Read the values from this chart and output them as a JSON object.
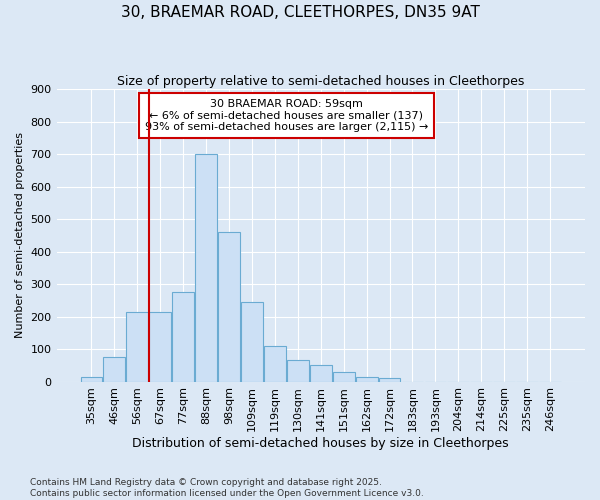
{
  "title1": "30, BRAEMAR ROAD, CLEETHORPES, DN35 9AT",
  "title2": "Size of property relative to semi-detached houses in Cleethorpes",
  "xlabel": "Distribution of semi-detached houses by size in Cleethorpes",
  "ylabel": "Number of semi-detached properties",
  "categories": [
    "35sqm",
    "46sqm",
    "56sqm",
    "67sqm",
    "77sqm",
    "88sqm",
    "98sqm",
    "109sqm",
    "119sqm",
    "130sqm",
    "141sqm",
    "151sqm",
    "162sqm",
    "172sqm",
    "183sqm",
    "193sqm",
    "204sqm",
    "214sqm",
    "225sqm",
    "235sqm",
    "246sqm"
  ],
  "bar_values": [
    15,
    75,
    215,
    215,
    275,
    700,
    460,
    245,
    110,
    65,
    50,
    30,
    15,
    10,
    0,
    0,
    0,
    0,
    0,
    0,
    0
  ],
  "vline_x": 2.5,
  "annotation_text": "30 BRAEMAR ROAD: 59sqm\n← 6% of semi-detached houses are smaller (137)\n93% of semi-detached houses are larger (2,115) →",
  "footer": "Contains HM Land Registry data © Crown copyright and database right 2025.\nContains public sector information licensed under the Open Government Licence v3.0.",
  "bar_color": "#cce0f5",
  "bar_edge_color": "#6aabd2",
  "vline_color": "#cc0000",
  "annotation_box_edge": "#cc0000",
  "background_color": "#dce8f5",
  "grid_color": "#ffffff",
  "ylim": [
    0,
    900
  ],
  "yticks": [
    0,
    100,
    200,
    300,
    400,
    500,
    600,
    700,
    800,
    900
  ],
  "title1_fontsize": 11,
  "title2_fontsize": 9,
  "xlabel_fontsize": 9,
  "ylabel_fontsize": 8,
  "tick_fontsize": 8,
  "annotation_fontsize": 8,
  "footer_fontsize": 6.5
}
